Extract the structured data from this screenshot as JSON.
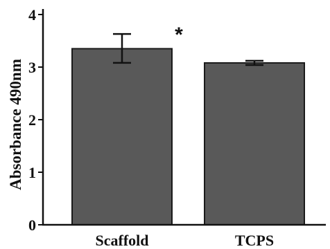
{
  "chart_data": {
    "type": "bar",
    "categories": [
      "Scaffold",
      "TCPS"
    ],
    "values": [
      3.35,
      3.08
    ],
    "errors": [
      {
        "low": 3.08,
        "high": 3.63
      },
      {
        "low": 3.04,
        "high": 3.12
      }
    ],
    "annotations": [
      {
        "category": "Scaffold",
        "text": "*"
      }
    ],
    "title": "",
    "xlabel": "",
    "ylabel": "Absorbance 490nm",
    "ylim": [
      0,
      4
    ],
    "yticks": [
      0,
      1,
      2,
      3,
      4
    ],
    "grid": false,
    "colors": {
      "bar": "#595959",
      "outline": "#1a1a1a",
      "axis": "#111111"
    }
  }
}
